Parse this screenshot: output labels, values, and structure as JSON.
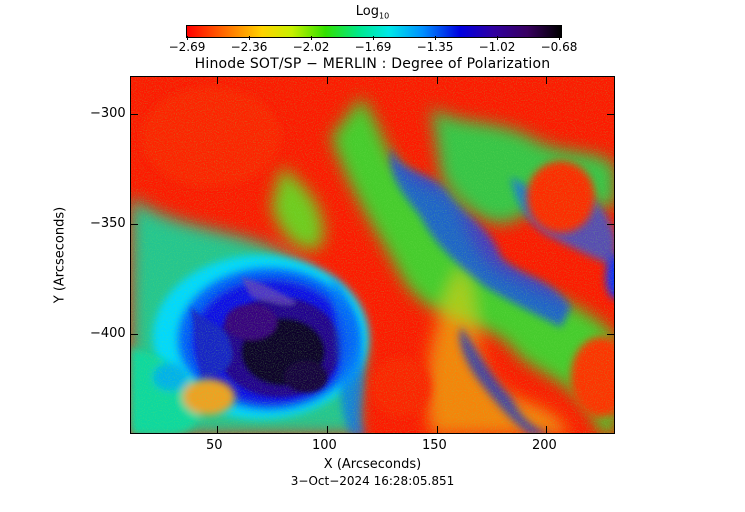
{
  "colorbar": {
    "title": "Log",
    "title_sub": "10",
    "ticks": [
      "−2.69",
      "−2.36",
      "−2.02",
      "−1.69",
      "−1.35",
      "−1.02",
      "−0.68"
    ]
  },
  "plot": {
    "title": "Hinode SOT/SP − MERLIN : Degree of Polarization",
    "xlabel": "X (Arcseconds)",
    "ylabel": "Y (Arcseconds)",
    "xticks": [
      "50",
      "100",
      "150",
      "200"
    ],
    "yticks": [
      "−300",
      "−350",
      "−400"
    ],
    "timestamp": "3−Oct−2024 16:28:05.851"
  }
}
